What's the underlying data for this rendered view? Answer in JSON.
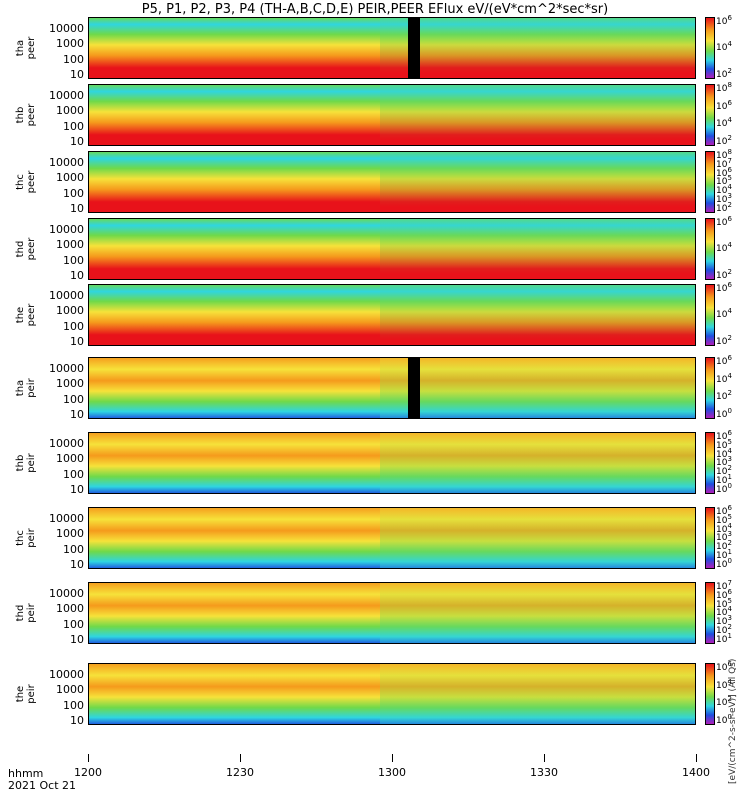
{
  "title": "P5, P1, P2, P3, P4 (TH-A,B,C,D,E) PEIR,PEER EFlux eV/(eV*cm^2*sec*sr)",
  "chart_data": {
    "type": "heatmap",
    "title": "P5, P1, P2, P3, P4 (TH-A,B,C,D,E) PEIR,PEER EFlux eV/(eV*cm^2*sec*sr)",
    "xlabel_row1": "hhmm",
    "xlabel_row2": "2021 Oct 21",
    "x_ticks": [
      "1200",
      "1230",
      "1300",
      "1330",
      "1400"
    ],
    "xlim": [
      "1200",
      "1400"
    ],
    "y_scale": "log",
    "y_ticks": [
      "10",
      "100",
      "1000",
      "10000"
    ],
    "colorbar_unit": "[eV/(cm^2-s-sr-eV)] (All Qs)",
    "panels": [
      {
        "ylabel_1": "tha",
        "ylabel_2": "peer",
        "cbar_ticks": [
          "10^6",
          "10^4",
          "10^2"
        ]
      },
      {
        "ylabel_1": "thb",
        "ylabel_2": "peer",
        "cbar_ticks": [
          "10^8",
          "10^6",
          "10^4",
          "10^2"
        ]
      },
      {
        "ylabel_1": "thc",
        "ylabel_2": "peer",
        "cbar_ticks": [
          "10^8",
          "10^7",
          "10^6",
          "10^5",
          "10^4",
          "10^3",
          "10^2"
        ]
      },
      {
        "ylabel_1": "thd",
        "ylabel_2": "peer",
        "cbar_ticks": [
          "10^6",
          "10^4",
          "10^2"
        ]
      },
      {
        "ylabel_1": "the",
        "ylabel_2": "peer",
        "cbar_ticks": [
          "10^6",
          "10^4",
          "10^2"
        ]
      },
      {
        "ylabel_1": "tha",
        "ylabel_2": "peir",
        "cbar_ticks": [
          "10^6",
          "10^4",
          "10^2",
          "10^0"
        ]
      },
      {
        "ylabel_1": "thb",
        "ylabel_2": "peir",
        "cbar_ticks": [
          "10^6",
          "10^5",
          "10^4",
          "10^3",
          "10^2",
          "10^1",
          "10^0"
        ]
      },
      {
        "ylabel_1": "thc",
        "ylabel_2": "peir",
        "cbar_ticks": [
          "10^6",
          "10^5",
          "10^4",
          "10^3",
          "10^2",
          "10^1",
          "10^0"
        ]
      },
      {
        "ylabel_1": "thd",
        "ylabel_2": "peir",
        "cbar_ticks": [
          "10^7",
          "10^6",
          "10^5",
          "10^4",
          "10^3",
          "10^2",
          "10^1"
        ]
      },
      {
        "ylabel_1": "the",
        "ylabel_2": "peir",
        "cbar_ticks": [
          "10^6",
          "10^4",
          "10^2",
          "10^0"
        ]
      }
    ]
  },
  "colors": {
    "red": "#e8121a",
    "orange": "#f59a1c",
    "yellow": "#f6e23a",
    "green": "#6fd94a",
    "cyan": "#2fd6e0",
    "blue": "#1e4fe0",
    "magenta": "#b01fb8",
    "black": "#000000"
  }
}
